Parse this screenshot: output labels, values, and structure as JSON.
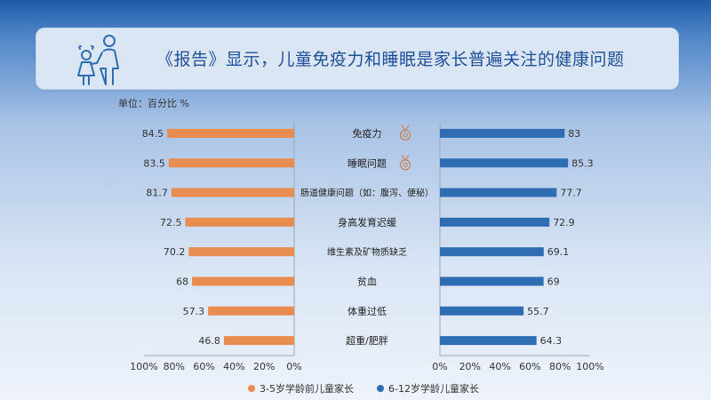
{
  "header": {
    "title": "《报告》显示，儿童免疫力和睡眠是家长普遍关注的健康问题"
  },
  "unit_label": "单位：百分比 %",
  "colors": {
    "left": "#e98c4f",
    "right": "#2f6db3",
    "medal": "#c9855c"
  },
  "chart_data": {
    "type": "bar",
    "orientation": "horizontal-butterfly",
    "categories": [
      "免疫力",
      "睡眠问题",
      "肠道健康问题（如：腹泻、便秘）",
      "身高发育迟缓",
      "维生素及矿物质缺乏",
      "贫血",
      "体重过低",
      "超重/肥胖"
    ],
    "highlighted_categories": [
      "免疫力",
      "睡眠问题"
    ],
    "series": [
      {
        "name": "3-5岁学龄前儿童家长",
        "side": "left",
        "values": [
          84.5,
          83.5,
          81.7,
          72.5,
          70.2,
          68,
          57.3,
          46.8
        ],
        "labels": [
          "84.5",
          "83.5",
          "81.7",
          "72.5",
          "70.2",
          "68",
          "57.3",
          "46.8"
        ]
      },
      {
        "name": "6-12岁学龄儿童家长",
        "side": "right",
        "values": [
          83,
          85.3,
          77.7,
          72.9,
          69.1,
          69,
          55.7,
          64.3
        ],
        "labels": [
          "83",
          "85.3",
          "77.7",
          "72.9",
          "69.1",
          "69",
          "55.7",
          "64.3"
        ]
      }
    ],
    "xlim": [
      0,
      100
    ],
    "left_axis_ticks": [
      "100%",
      "80%",
      "60%",
      "40%",
      "20%",
      "0%"
    ],
    "right_axis_ticks": [
      "0%",
      "20%",
      "40%",
      "60%",
      "80%",
      "100%"
    ],
    "legend_position": "bottom",
    "grid": false
  }
}
